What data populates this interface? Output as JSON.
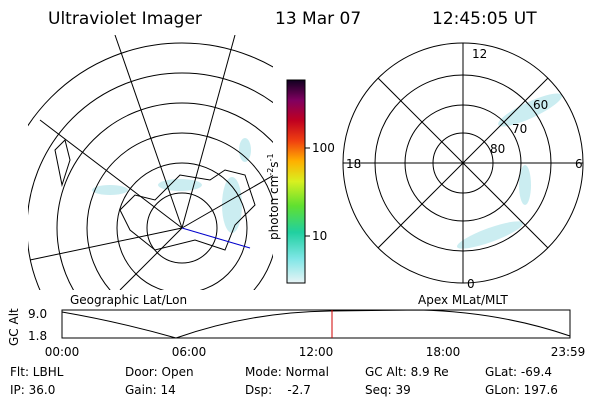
{
  "header": {
    "title": "Ultraviolet Imager",
    "date": "13 Mar 07",
    "time": "12:45:05 UT"
  },
  "colorbar": {
    "label": [
      "photon cm",
      "-2",
      "s",
      "-1"
    ],
    "ticks": [
      "100",
      "10"
    ]
  },
  "polar": {
    "mlt_labels": [
      "12",
      "18",
      "6",
      "0"
    ],
    "mlat_labels": [
      "60",
      "70",
      "80"
    ]
  },
  "panel_labels": {
    "left": "Geographic Lat/Lon",
    "right": "Apex MLat/MLT"
  },
  "altitude": {
    "axis_label": "GC Alt",
    "yticks": [
      "9.0",
      "1.8"
    ],
    "xticks": [
      "00:00",
      "06:00",
      "12:00",
      "18:00",
      "23:59"
    ]
  },
  "footer": {
    "rows": [
      [
        "Flt: LBHL",
        "Door: Open",
        "Mode: Normal",
        "GC Alt: 8.9 Re",
        "GLat: -69.4"
      ],
      [
        "IP: 36.0",
        "Gain: 14",
        "Dsp:    -2.7",
        "Seq: 39",
        "GLon: 197.6"
      ]
    ]
  }
}
